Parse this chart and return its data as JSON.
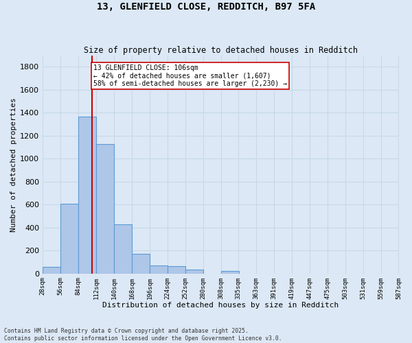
{
  "title_line1": "13, GLENFIELD CLOSE, REDDITCH, B97 5FA",
  "title_line2": "Size of property relative to detached houses in Redditch",
  "xlabel": "Distribution of detached houses by size in Redditch",
  "ylabel": "Number of detached properties",
  "footnote_line1": "Contains HM Land Registry data © Crown copyright and database right 2025.",
  "footnote_line2": "Contains public sector information licensed under the Open Government Licence v3.0.",
  "bar_left_edges": [
    28,
    56,
    84,
    112,
    140,
    168,
    196,
    224,
    252,
    280,
    308,
    335,
    363,
    391,
    419,
    447,
    475,
    503,
    531,
    559
  ],
  "bar_heights": [
    60,
    605,
    1365,
    1125,
    430,
    170,
    70,
    65,
    35,
    0,
    20,
    0,
    0,
    0,
    0,
    0,
    0,
    0,
    0,
    0
  ],
  "bin_width": 28,
  "bar_color": "#aec6e8",
  "bar_edge_color": "#5b9bd5",
  "grid_color": "#c8d8e8",
  "bg_color": "#dce8f5",
  "property_size": 106,
  "property_line_color": "#cc0000",
  "annotation_text": "13 GLENFIELD CLOSE: 106sqm\n← 42% of detached houses are smaller (1,607)\n58% of semi-detached houses are larger (2,230) →",
  "annotation_box_color": "#ffffff",
  "annotation_border_color": "#cc0000",
  "ylim": [
    0,
    1900
  ],
  "xlim": [
    28,
    587
  ],
  "yticks": [
    0,
    200,
    400,
    600,
    800,
    1000,
    1200,
    1400,
    1600,
    1800
  ],
  "xtick_labels": [
    "28sqm",
    "56sqm",
    "84sqm",
    "112sqm",
    "140sqm",
    "168sqm",
    "196sqm",
    "224sqm",
    "252sqm",
    "280sqm",
    "308sqm",
    "335sqm",
    "363sqm",
    "391sqm",
    "419sqm",
    "447sqm",
    "475sqm",
    "503sqm",
    "531sqm",
    "559sqm",
    "587sqm"
  ]
}
